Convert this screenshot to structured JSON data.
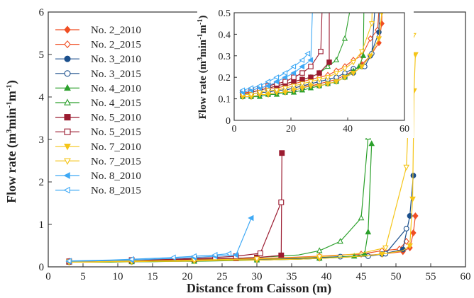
{
  "chart_data": [
    {
      "type": "line",
      "xlabel": "Distance from Caisson (m)",
      "ylabel_base": "Flow rate (m",
      "ylabel_sup1": "3",
      "ylabel_mid1": "min",
      "ylabel_sup2": "-1",
      "ylabel_mid2": "m",
      "ylabel_sup3": "-1",
      "ylabel_end": ")",
      "xlim": [
        0,
        60
      ],
      "ylim": [
        0,
        6
      ],
      "xticks": [
        0,
        5,
        10,
        15,
        20,
        25,
        30,
        35,
        40,
        45,
        50,
        55,
        60
      ],
      "yticks": [
        0,
        1,
        2,
        3,
        4,
        5,
        6
      ],
      "legend_position": "upper-left",
      "series": [
        {
          "name": "No. 2_2010",
          "color": "#f04e23",
          "marker": "diamond",
          "filled": true,
          "x": [
            3,
            6,
            9,
            12,
            15,
            18,
            21,
            24,
            27,
            30,
            33,
            36,
            39,
            42,
            45,
            48,
            51,
            52,
            52.5,
            52.8
          ],
          "y": [
            0.12,
            0.12,
            0.13,
            0.13,
            0.14,
            0.14,
            0.15,
            0.16,
            0.16,
            0.17,
            0.18,
            0.19,
            0.21,
            0.23,
            0.26,
            0.3,
            0.36,
            0.45,
            0.8,
            1.2
          ]
        },
        {
          "name": "No. 2_2015",
          "color": "#f04e23",
          "marker": "diamond",
          "filled": false,
          "x": [
            3,
            6,
            9,
            12,
            15,
            18,
            21,
            24,
            27,
            30,
            33,
            36,
            39,
            42,
            45,
            48,
            50.5,
            51.5
          ],
          "y": [
            0.13,
            0.13,
            0.14,
            0.15,
            0.15,
            0.16,
            0.17,
            0.18,
            0.19,
            0.2,
            0.21,
            0.23,
            0.25,
            0.28,
            0.3,
            0.38,
            0.42,
            0.6
          ]
        },
        {
          "name": "No. 3_2010",
          "color": "#1b4f8c",
          "marker": "circle",
          "filled": true,
          "x": [
            3,
            6,
            9,
            12,
            15,
            18,
            21,
            24,
            27,
            30,
            33,
            36,
            39,
            42,
            45,
            48,
            51,
            52,
            52.5
          ],
          "y": [
            0.11,
            0.11,
            0.12,
            0.12,
            0.13,
            0.13,
            0.14,
            0.15,
            0.16,
            0.16,
            0.17,
            0.18,
            0.2,
            0.22,
            0.25,
            0.3,
            0.41,
            1.2,
            2.15
          ]
        },
        {
          "name": "No. 3_2015",
          "color": "#1b4f8c",
          "marker": "circle",
          "filled": false,
          "x": [
            3,
            6,
            9,
            12,
            15,
            18,
            21,
            24,
            27,
            30,
            33,
            36,
            39,
            42,
            46,
            48.5,
            51.5
          ],
          "y": [
            0.12,
            0.12,
            0.13,
            0.13,
            0.14,
            0.14,
            0.15,
            0.16,
            0.17,
            0.18,
            0.19,
            0.2,
            0.22,
            0.24,
            0.25,
            0.31,
            0.9
          ]
        },
        {
          "name": "No. 4_2010",
          "color": "#2ca02c",
          "marker": "triangle",
          "filled": true,
          "x": [
            3,
            6,
            9,
            12,
            15,
            18,
            21,
            24,
            27,
            30,
            33,
            36,
            39,
            42,
            44,
            45.5,
            46,
            46.5
          ],
          "y": [
            0.11,
            0.11,
            0.11,
            0.12,
            0.12,
            0.13,
            0.13,
            0.14,
            0.15,
            0.16,
            0.17,
            0.18,
            0.2,
            0.23,
            0.25,
            0.3,
            0.82,
            2.9
          ]
        },
        {
          "name": "No. 4_2015",
          "color": "#2ca02c",
          "marker": "triangle",
          "filled": false,
          "x": [
            3,
            6,
            9,
            12,
            15,
            18,
            21,
            24,
            27,
            30,
            33,
            36,
            39,
            42,
            45,
            46
          ],
          "y": [
            0.12,
            0.13,
            0.14,
            0.15,
            0.16,
            0.17,
            0.18,
            0.19,
            0.2,
            0.22,
            0.25,
            0.28,
            0.38,
            0.6,
            1.15,
            3.05
          ]
        },
        {
          "name": "No. 5_2010",
          "color": "#9b1b30",
          "marker": "square",
          "filled": true,
          "x": [
            3,
            6,
            9,
            12,
            15,
            18,
            21,
            24,
            27,
            30,
            33.5,
            33.6
          ],
          "y": [
            0.12,
            0.13,
            0.14,
            0.15,
            0.16,
            0.17,
            0.18,
            0.19,
            0.2,
            0.22,
            0.27,
            2.68
          ]
        },
        {
          "name": "No. 5_2015",
          "color": "#9b1b30",
          "marker": "square",
          "filled": false,
          "x": [
            3,
            6,
            9,
            12,
            15,
            18,
            21,
            24,
            27,
            30.5,
            33.5
          ],
          "y": [
            0.13,
            0.14,
            0.15,
            0.16,
            0.17,
            0.18,
            0.2,
            0.22,
            0.25,
            0.32,
            1.52
          ]
        },
        {
          "name": "No. 7_2010",
          "color": "#f5c518",
          "marker": "triangle-down",
          "filled": true,
          "x": [
            3,
            6,
            9,
            12,
            15,
            18,
            21,
            24,
            27,
            30,
            33,
            36,
            39,
            42,
            45,
            48,
            51,
            52,
            52.4,
            52.6,
            52.8
          ],
          "y": [
            0.11,
            0.11,
            0.12,
            0.12,
            0.13,
            0.13,
            0.14,
            0.15,
            0.16,
            0.16,
            0.17,
            0.18,
            0.2,
            0.22,
            0.25,
            0.3,
            0.38,
            0.5,
            1.6,
            4.15,
            5.0
          ]
        },
        {
          "name": "No. 7_2015",
          "color": "#f5c518",
          "marker": "triangle-down",
          "filled": false,
          "x": [
            3,
            6,
            9,
            12,
            15,
            18,
            21,
            24,
            27,
            30,
            33,
            36,
            39,
            42,
            45,
            48.5,
            51.5,
            52,
            52.5
          ],
          "y": [
            0.12,
            0.12,
            0.13,
            0.14,
            0.14,
            0.15,
            0.16,
            0.17,
            0.18,
            0.19,
            0.2,
            0.22,
            0.24,
            0.27,
            0.32,
            0.45,
            2.35,
            4.3,
            5.45
          ]
        },
        {
          "name": "No. 8_2010",
          "color": "#3fa9f5",
          "marker": "triangle-left",
          "filled": true,
          "x": [
            3,
            6,
            9,
            12,
            15,
            18,
            21,
            24,
            27,
            29.2
          ],
          "y": [
            0.13,
            0.14,
            0.15,
            0.16,
            0.18,
            0.2,
            0.22,
            0.25,
            0.28,
            1.15
          ]
        },
        {
          "name": "No. 8_2015",
          "color": "#3fa9f5",
          "marker": "triangle-left",
          "filled": false,
          "x": [
            3,
            6,
            9,
            12,
            15,
            18,
            21,
            24,
            26
          ],
          "y": [
            0.14,
            0.15,
            0.16,
            0.18,
            0.2,
            0.22,
            0.25,
            0.28,
            0.31
          ]
        }
      ]
    },
    {
      "type": "line",
      "name": "inset",
      "ylabel_base": "Flow rate (m",
      "ylabel_sup1": "3",
      "ylabel_mid1": "min",
      "ylabel_sup2": "-1",
      "ylabel_mid2": "m",
      "ylabel_sup3": "-1",
      "ylabel_end": ")",
      "xlim": [
        0,
        60
      ],
      "ylim": [
        0,
        0.5
      ],
      "xticks": [
        0,
        20,
        40,
        60
      ],
      "yticks": [
        0,
        0.1,
        0.2,
        0.3,
        0.4,
        0.5
      ],
      "note": "zoom of main chart series over 0-0.5"
    }
  ]
}
